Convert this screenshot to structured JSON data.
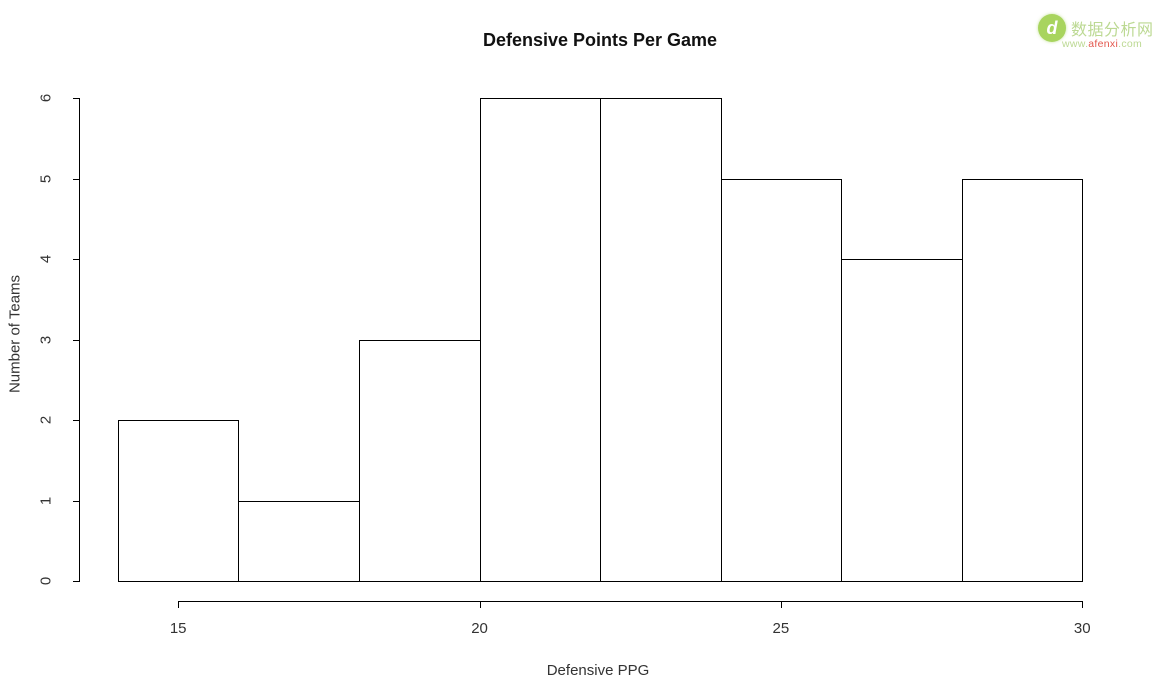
{
  "chart_data": {
    "type": "bar",
    "subtype": "histogram",
    "title": "Defensive Points Per Game",
    "xlabel": "Defensive PPG",
    "ylabel": "Number of Teams",
    "bin_edges": [
      14,
      16,
      18,
      20,
      22,
      24,
      26,
      28,
      30
    ],
    "counts": [
      2,
      1,
      3,
      6,
      6,
      5,
      4,
      5
    ],
    "x_ticks": [
      "15",
      "20",
      "25",
      "30"
    ],
    "x_tick_values": [
      15,
      20,
      25,
      30
    ],
    "y_ticks": [
      "0",
      "1",
      "2",
      "3",
      "4",
      "5",
      "6"
    ],
    "y_tick_values": [
      0,
      1,
      2,
      3,
      4,
      5,
      6
    ],
    "xlim": [
      14,
      30
    ],
    "ylim": [
      0,
      6
    ],
    "grid": false,
    "legend": "none",
    "bar_fill": "#ffffff",
    "bar_border": "#000000",
    "axis_color": "#000000",
    "text_color": "#333333"
  },
  "watermark": {
    "site_name": "数据分析网",
    "url_www": "www.",
    "url_domain": "afenxi",
    "url_tld": ".com",
    "logo_glyph": "d",
    "circle_color": "#a8d45e",
    "text_color": "#bcd993",
    "domain_color": "#e3574d"
  }
}
